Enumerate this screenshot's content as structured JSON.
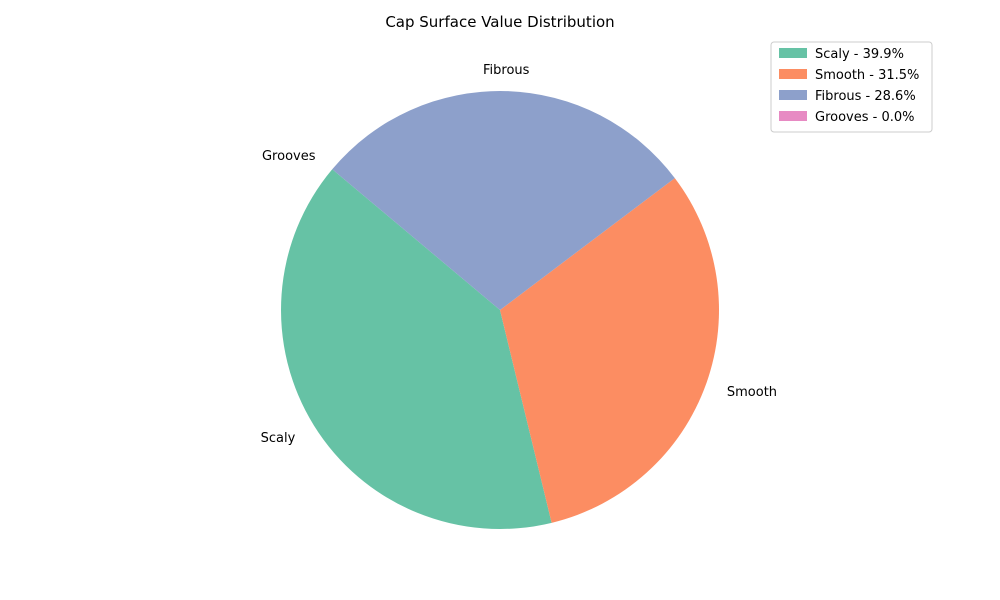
{
  "chart_data": {
    "type": "pie",
    "title": "Cap Surface Value Distribution",
    "slices": [
      {
        "label": "Scaly",
        "value": 39.9,
        "legend": "Scaly - 39.9%",
        "color": "#66c2a5"
      },
      {
        "label": "Smooth",
        "value": 31.5,
        "legend": "Smooth - 31.5%",
        "color": "#fc8d62"
      },
      {
        "label": "Fibrous",
        "value": 28.6,
        "legend": "Fibrous - 28.6%",
        "color": "#8da0cb"
      },
      {
        "label": "Grooves",
        "value": 0.0,
        "legend": "Grooves - 0.0%",
        "color": "#e78ac3"
      }
    ],
    "start_angle_deg": 140,
    "direction": "counterclockwise",
    "legend_position": "upper-right"
  }
}
